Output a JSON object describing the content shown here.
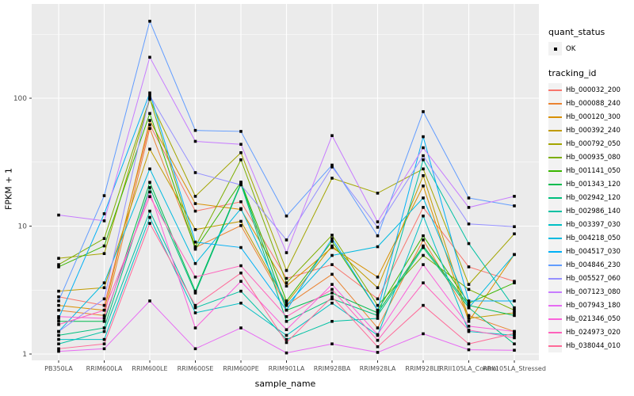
{
  "figure": {
    "kind": "ggplot-line-chart",
    "panel_background": "#EBEBEB",
    "gridline_color": "#FFFFFF",
    "tick_label_color": "#4D4D4D",
    "point_color": "#000000",
    "legend_key_background": "#F2F2F2"
  },
  "legend": {
    "quant_status_title": "quant_status",
    "quant_status_items": [
      "OK"
    ],
    "tracking_title": "tracking_id"
  },
  "chart_data": {
    "type": "line",
    "title": "",
    "xlabel": "sample_name",
    "ylabel": "FPKM + 1",
    "y_scale": "log10",
    "ylim": [
      1,
      500
    ],
    "y_major_ticks": [
      1,
      10,
      100
    ],
    "y_minor_gridlines": [
      3.162,
      31.62,
      316.2
    ],
    "grid": "on",
    "legend_position": "right",
    "point_shape": "filled-square",
    "quant_status": "OK",
    "categories": [
      "PB350LA",
      "RRIM600LA",
      "RRIM600LE",
      "RRIM600SE",
      "RRIM600PE",
      "RRIM901LA",
      "RRIM928BA",
      "RRIM928LA",
      "RRIM928LE",
      "RRII105LA_Control",
      "RRII105LA_Stressed"
    ],
    "series": [
      {
        "name": "Hb_000032_200",
        "color": "#F8766D",
        "values": [
          2.8,
          2.4,
          62,
          13.1,
          15.5,
          3.9,
          5.0,
          2.7,
          14.0,
          4.8,
          3.7
        ]
      },
      {
        "name": "Hb_000088_240",
        "color": "#EA8331",
        "values": [
          2.2,
          2.0,
          58,
          6.8,
          10.1,
          2.4,
          4.2,
          1.6,
          7.8,
          2.0,
          1.5
        ]
      },
      {
        "name": "Hb_000120_300",
        "color": "#D89000",
        "values": [
          2.4,
          2.2,
          67,
          15.0,
          13.5,
          3.4,
          6.8,
          4.0,
          20.6,
          1.8,
          6.0
        ]
      },
      {
        "name": "Hb_000392_240",
        "color": "#C09B00",
        "values": [
          3.1,
          3.3,
          40,
          9.4,
          10.9,
          2.5,
          7.0,
          3.3,
          24.8,
          1.9,
          2.1
        ]
      },
      {
        "name": "Hb_000792_050",
        "color": "#A3A500",
        "values": [
          5.6,
          6.1,
          98,
          17.1,
          37.5,
          4.5,
          23.7,
          18.1,
          28.0,
          3.5,
          8.7
        ]
      },
      {
        "name": "Hb_000935_080",
        "color": "#7CAE00",
        "values": [
          5.0,
          8.0,
          100,
          6.9,
          33.0,
          3.6,
          8.5,
          2.4,
          5.9,
          3.2,
          2.2
        ]
      },
      {
        "name": "Hb_001141_050",
        "color": "#39B600",
        "values": [
          4.8,
          7.0,
          76,
          6.6,
          22.1,
          2.6,
          7.6,
          2.2,
          8.4,
          2.5,
          3.6
        ]
      },
      {
        "name": "Hb_001343_120",
        "color": "#00BB4E",
        "values": [
          1.8,
          1.8,
          22.0,
          3.1,
          21.7,
          2.2,
          3.0,
          2.1,
          7.0,
          2.4,
          2.0
        ]
      },
      {
        "name": "Hb_002942_120",
        "color": "#00BF7D",
        "values": [
          1.4,
          1.6,
          20.0,
          3.0,
          21.3,
          1.8,
          2.7,
          2.0,
          6.8,
          2.3,
          1.2
        ]
      },
      {
        "name": "Hb_002986_140",
        "color": "#00C1A3",
        "values": [
          1.2,
          1.5,
          13.1,
          2.3,
          3.1,
          1.3,
          1.8,
          1.9,
          33.0,
          7.3,
          2.3
        ]
      },
      {
        "name": "Hb_003397_030",
        "color": "#00BFC4",
        "values": [
          1.3,
          1.3,
          11.7,
          2.1,
          2.5,
          1.4,
          2.5,
          1.4,
          12.0,
          1.5,
          1.4
        ]
      },
      {
        "name": "Hb_004218_050",
        "color": "#00BAE0",
        "values": [
          1.5,
          3.6,
          28.0,
          5.1,
          13.7,
          2.4,
          5.9,
          6.9,
          16.6,
          2.3,
          6.0
        ]
      },
      {
        "name": "Hb_004517_030",
        "color": "#00B0F6",
        "values": [
          1.9,
          12.5,
          110,
          7.5,
          6.8,
          2.2,
          8.0,
          2.2,
          50.0,
          2.6,
          2.6
        ]
      },
      {
        "name": "Hb_004846_230",
        "color": "#619CFF",
        "values": [
          2.6,
          17.3,
          400,
          56.0,
          55.0,
          12.0,
          30.0,
          8.4,
          78.5,
          16.6,
          14.4
        ]
      },
      {
        "name": "Hb_005527_060",
        "color": "#9590FF",
        "values": [
          1.5,
          2.7,
          105,
          26.2,
          21.0,
          7.8,
          29.0,
          9.8,
          35.5,
          10.4,
          9.9
        ]
      },
      {
        "name": "Hb_007123_080",
        "color": "#C77CFF",
        "values": [
          12.2,
          11.0,
          209,
          46.0,
          43.6,
          6.2,
          51.0,
          10.8,
          41.0,
          14.0,
          17.1
        ]
      },
      {
        "name": "Hb_007943_180",
        "color": "#E76BF3",
        "values": [
          1.05,
          1.1,
          2.6,
          1.1,
          1.6,
          1.02,
          1.2,
          1.03,
          1.44,
          1.08,
          1.07
        ]
      },
      {
        "name": "Hb_021346_050",
        "color": "#FA62DB",
        "values": [
          1.96,
          1.9,
          18.5,
          1.6,
          3.7,
          1.55,
          3.5,
          1.42,
          5.0,
          1.65,
          1.5
        ]
      },
      {
        "name": "Hb_024973_020",
        "color": "#FF62BC",
        "values": [
          1.7,
          2.2,
          17.0,
          4.0,
          4.9,
          1.96,
          3.2,
          1.28,
          3.6,
          1.54,
          1.34
        ]
      },
      {
        "name": "Hb_038044_010",
        "color": "#FF6A98",
        "values": [
          1.1,
          1.2,
          10.5,
          2.4,
          4.3,
          1.23,
          2.8,
          1.14,
          2.4,
          1.2,
          1.45
        ]
      }
    ]
  }
}
